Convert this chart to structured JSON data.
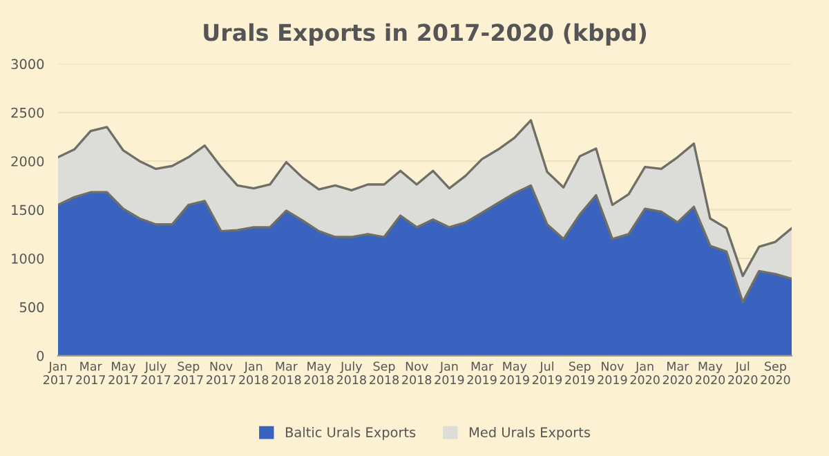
{
  "chart_data": {
    "type": "area",
    "stacked": true,
    "title": "Urals Exports in 2017-2020 (kbpd)",
    "categories": [
      "Jan 2017",
      null,
      "Mar 2017",
      null,
      "May 2017",
      null,
      "July 2017",
      null,
      "Sep 2017",
      null,
      "Nov 2017",
      null,
      "Jan 2018",
      null,
      "Mar 2018",
      null,
      "May 2018",
      null,
      "July 2018",
      null,
      "Sep 2018",
      null,
      "Nov 2018",
      null,
      "Jan 2019",
      null,
      "Mar 2019",
      null,
      "May 2019",
      null,
      "Jul 2019",
      null,
      "Sep 2019",
      null,
      "Nov 2019",
      null,
      "Jan 2020",
      null,
      "Mar 2020",
      null,
      "May 2020",
      null,
      "Jul 2020",
      null,
      "Sep 2020",
      null
    ],
    "series": [
      {
        "name": "Baltic Urals Exports",
        "color": "#3a62bf",
        "values": [
          1550,
          1630,
          1680,
          1680,
          1510,
          1410,
          1350,
          1350,
          1550,
          1590,
          1280,
          1290,
          1320,
          1320,
          1490,
          1390,
          1280,
          1220,
          1220,
          1250,
          1220,
          1440,
          1320,
          1400,
          1320,
          1370,
          1470,
          1570,
          1670,
          1750,
          1350,
          1200,
          1450,
          1650,
          1200,
          1250,
          1510,
          1480,
          1370,
          1530,
          1130,
          1070,
          550,
          870,
          840,
          790
        ]
      },
      {
        "name": "Med Urals Exports",
        "color": "#dcdcd8",
        "values": [
          490,
          490,
          630,
          670,
          600,
          590,
          570,
          600,
          490,
          570,
          660,
          460,
          400,
          440,
          500,
          440,
          430,
          530,
          480,
          510,
          540,
          460,
          440,
          500,
          400,
          480,
          550,
          550,
          570,
          670,
          540,
          530,
          600,
          480,
          350,
          410,
          430,
          440,
          670,
          650,
          280,
          240,
          270,
          250,
          330,
          520
        ]
      }
    ],
    "ylim": [
      0,
      3000
    ],
    "yticks": [
      0,
      500,
      1000,
      1500,
      2000,
      2500,
      3000
    ],
    "grid": "y",
    "legend": "bottom"
  }
}
